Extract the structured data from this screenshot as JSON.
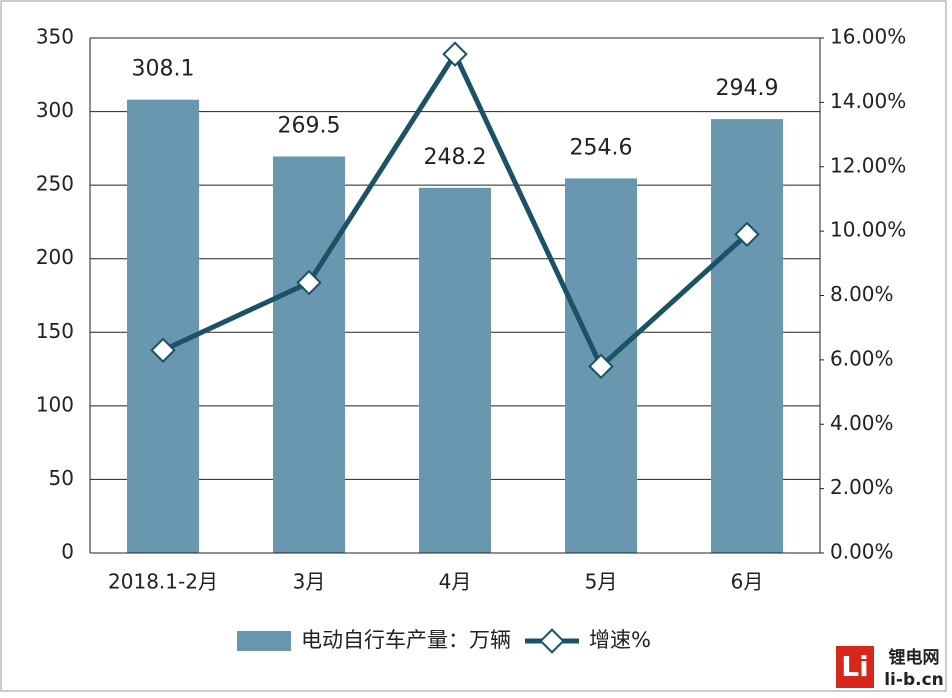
{
  "chart_data": {
    "type": "bar-line",
    "categories": [
      "2018.1-2月",
      "3月",
      "4月",
      "5月",
      "6月"
    ],
    "series": [
      {
        "name": "电动自行车产量：万辆",
        "type": "bar",
        "color": "#6a97b0",
        "values": [
          308.1,
          269.5,
          248.2,
          254.6,
          294.9
        ]
      },
      {
        "name": "增速%",
        "type": "line",
        "axis": "y2",
        "color": "#1b5266",
        "values": [
          6.3,
          8.4,
          15.5,
          5.8,
          9.9
        ]
      }
    ],
    "ylim": [
      0,
      350
    ],
    "yticks": [
      0,
      50,
      100,
      150,
      200,
      250,
      300,
      350
    ],
    "y2lim": [
      0,
      16
    ],
    "y2ticks": [
      {
        "value": 0,
        "label": "0.00%"
      },
      {
        "value": 2,
        "label": "2.00%"
      },
      {
        "value": 4,
        "label": "4.00%"
      },
      {
        "value": 6,
        "label": "6.00%"
      },
      {
        "value": 8,
        "label": "8.00%"
      },
      {
        "value": 10,
        "label": "10.00%"
      },
      {
        "value": 12,
        "label": "12.00%"
      },
      {
        "value": 14,
        "label": "14.00%"
      },
      {
        "value": 16,
        "label": "16.00%"
      }
    ],
    "grid": true,
    "legend": "bottom"
  },
  "watermark": {
    "logo": "Li",
    "name": "锂电网",
    "url": "li-b.cn"
  }
}
